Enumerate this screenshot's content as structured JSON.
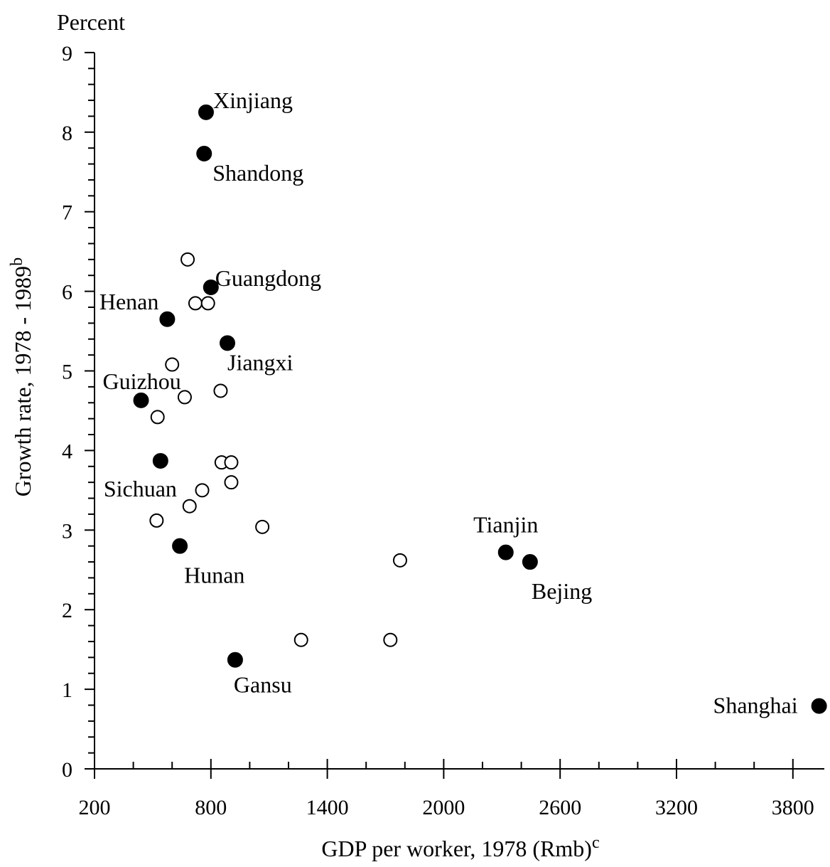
{
  "chart_data": {
    "type": "scatter",
    "title": "",
    "y_unit_label": "Percent",
    "xlabel": "GDP per worker, 1978 (Rmb)",
    "xlabel_sup": "c",
    "ylabel": "Growth rate, 1978 - 1989",
    "ylabel_sup": "b",
    "xlim": [
      200,
      4000
    ],
    "ylim": [
      0,
      9
    ],
    "x_tick_labels": [
      "200",
      "800",
      "1400",
      "2000",
      "2600",
      "3200",
      "3800"
    ],
    "y_tick_labels": [
      "0",
      "1",
      "2",
      "3",
      "4",
      "5",
      "6",
      "7",
      "8",
      "9"
    ],
    "grid": false,
    "series": [
      {
        "marker": "filled",
        "points": [
          {
            "x": 775,
            "y": 8.25,
            "label": "Xinjiang"
          },
          {
            "x": 765,
            "y": 7.73,
            "label": "Shandong"
          },
          {
            "x": 800,
            "y": 6.05,
            "label": "Guangdong"
          },
          {
            "x": 575,
            "y": 5.65,
            "label": "Henan"
          },
          {
            "x": 885,
            "y": 5.35,
            "label": "Jiangxi"
          },
          {
            "x": 440,
            "y": 4.63,
            "label": "Guizhou"
          },
          {
            "x": 540,
            "y": 3.87,
            "label": "Sichuan"
          },
          {
            "x": 640,
            "y": 2.8,
            "label": "Hunan"
          },
          {
            "x": 925,
            "y": 1.37,
            "label": "Gansu"
          },
          {
            "x": 2320,
            "y": 2.72,
            "label": "Tianjin"
          },
          {
            "x": 2445,
            "y": 2.6,
            "label": "Bejing"
          },
          {
            "x": 3935,
            "y": 0.79,
            "label": "Shanghai"
          }
        ]
      },
      {
        "marker": "open",
        "points": [
          {
            "x": 680,
            "y": 6.4
          },
          {
            "x": 720,
            "y": 5.85
          },
          {
            "x": 785,
            "y": 5.85
          },
          {
            "x": 600,
            "y": 5.08
          },
          {
            "x": 665,
            "y": 4.67
          },
          {
            "x": 850,
            "y": 4.75
          },
          {
            "x": 525,
            "y": 4.42
          },
          {
            "x": 855,
            "y": 3.85
          },
          {
            "x": 905,
            "y": 3.85
          },
          {
            "x": 905,
            "y": 3.6
          },
          {
            "x": 755,
            "y": 3.5
          },
          {
            "x": 690,
            "y": 3.3
          },
          {
            "x": 520,
            "y": 3.12
          },
          {
            "x": 1065,
            "y": 3.04
          },
          {
            "x": 1265,
            "y": 1.62
          },
          {
            "x": 1725,
            "y": 1.62
          },
          {
            "x": 1775,
            "y": 2.62
          }
        ]
      }
    ]
  }
}
